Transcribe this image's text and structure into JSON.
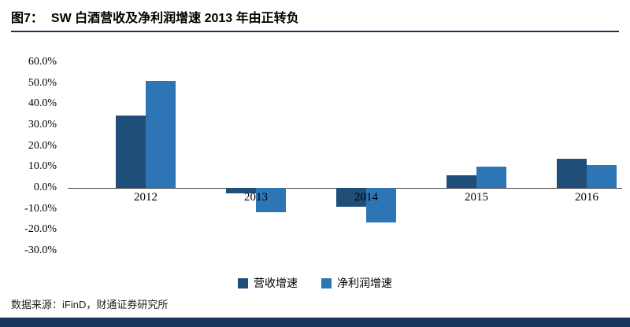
{
  "header": {
    "label": "图7：",
    "title": "SW 白酒营收及净利润增速 2013 年由正转负"
  },
  "chart_data": {
    "type": "bar",
    "title": "SW 白酒营收及净利润增速 2013 年由正转负",
    "categories": [
      "2012",
      "2013",
      "2014",
      "2015",
      "2016"
    ],
    "series": [
      {
        "id": "revenue-growth",
        "name": "营收增速",
        "color": "#1F4E79",
        "values": [
          34.5,
          -2.5,
          -9.0,
          6.0,
          14.0
        ]
      },
      {
        "id": "net-profit-growth",
        "name": "净利润增速",
        "color": "#2E75B6",
        "values": [
          51.0,
          -11.5,
          -16.5,
          10.0,
          11.0
        ]
      }
    ],
    "ylim": [
      -30,
      60
    ],
    "ytick_step": 10,
    "yticks": [
      "60.0%",
      "50.0%",
      "40.0%",
      "30.0%",
      "20.0%",
      "10.0%",
      "0.0%",
      "-10.0%",
      "-20.0%",
      "-30.0%"
    ],
    "grid": false,
    "legend_position": "bottom",
    "xlabel": "",
    "ylabel": ""
  },
  "footer": {
    "source": "数据来源：iFinD，财通证券研究所"
  },
  "colors": {
    "accent": "#17375E",
    "series_dark": "#1F4E79",
    "series_light": "#2E75B6",
    "axis_line": "#404040"
  }
}
